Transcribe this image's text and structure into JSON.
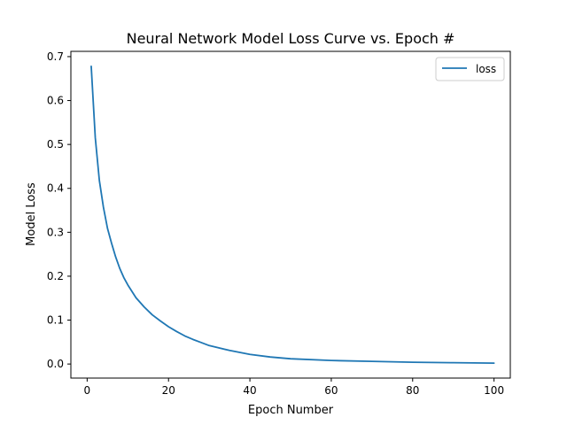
{
  "chart_data": {
    "type": "line",
    "title": "Neural Network Model Loss Curve vs. Epoch #",
    "xlabel": "Epoch Number",
    "ylabel": "Model Loss",
    "xlim": [
      -4,
      104
    ],
    "ylim": [
      -0.032,
      0.712
    ],
    "xticks": [
      0,
      20,
      40,
      60,
      80,
      100
    ],
    "yticks": [
      0.0,
      0.1,
      0.2,
      0.3,
      0.4,
      0.5,
      0.6,
      0.7
    ],
    "xtick_labels": [
      "0",
      "20",
      "40",
      "60",
      "80",
      "100"
    ],
    "ytick_labels": [
      "0.0",
      "0.1",
      "0.2",
      "0.3",
      "0.4",
      "0.5",
      "0.6",
      "0.7"
    ],
    "grid": false,
    "legend_position": "top-right",
    "series": [
      {
        "name": "loss",
        "color": "#1f77b4",
        "x": [
          1,
          2,
          3,
          4,
          5,
          6,
          7,
          8,
          9,
          10,
          12,
          14,
          16,
          18,
          20,
          22,
          24,
          26,
          28,
          30,
          35,
          40,
          45,
          50,
          60,
          70,
          80,
          90,
          100
        ],
        "y": [
          0.678,
          0.515,
          0.418,
          0.357,
          0.309,
          0.275,
          0.244,
          0.218,
          0.197,
          0.18,
          0.151,
          0.13,
          0.112,
          0.098,
          0.085,
          0.074,
          0.064,
          0.056,
          0.049,
          0.042,
          0.031,
          0.022,
          0.016,
          0.012,
          0.008,
          0.006,
          0.004,
          0.003,
          0.002
        ]
      }
    ]
  }
}
